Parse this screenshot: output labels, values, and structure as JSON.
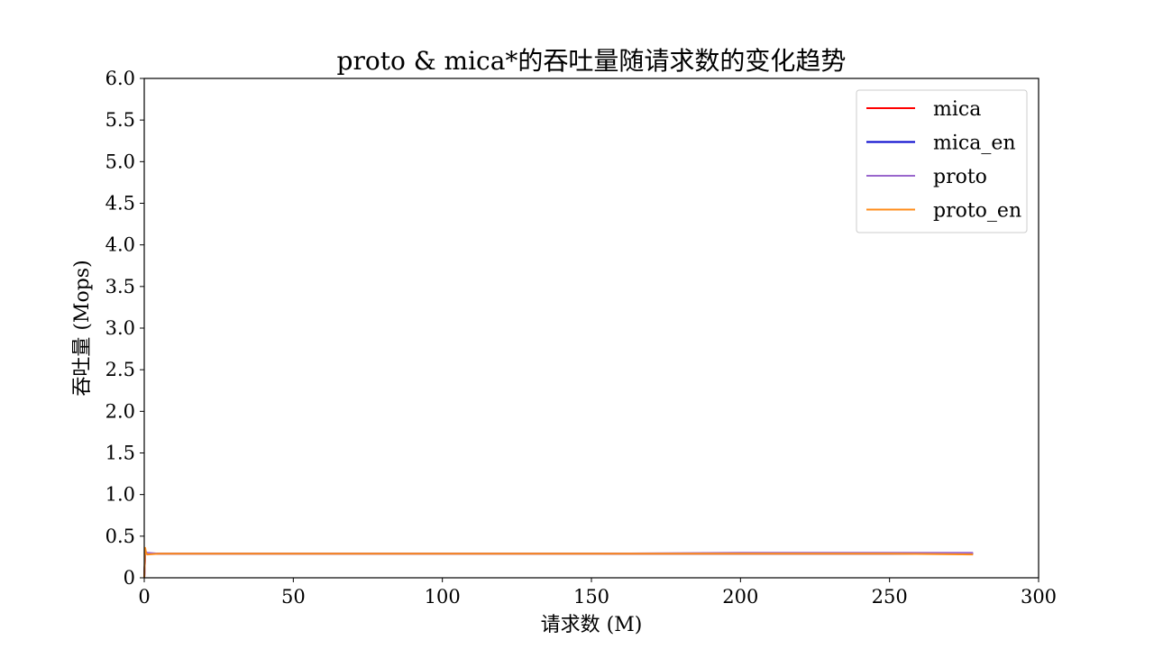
{
  "chart_data": {
    "type": "line",
    "title": "proto & mica*的吞吐量随请求数的变化趋势",
    "xlabel": "请求数 (M)",
    "ylabel": "吞吐量 (Mops)",
    "xlim": [
      0,
      300
    ],
    "ylim": [
      0,
      6.0
    ],
    "xticks": [
      "0",
      "50",
      "100",
      "150",
      "200",
      "250",
      "300"
    ],
    "yticks": [
      "0",
      "0.5",
      "1.0",
      "1.5",
      "2.0",
      "2.5",
      "3.0",
      "3.5",
      "4.0",
      "4.5",
      "5.0",
      "5.5",
      "6.0"
    ],
    "grid": false,
    "legend_position": "top-right",
    "series": [
      {
        "name": "mica",
        "color": "#ff0000",
        "x": [
          0,
          0.3,
          0.6,
          1,
          5,
          20,
          50,
          100,
          150,
          200,
          250,
          278
        ],
        "y": [
          0.0,
          0.29,
          0.3,
          0.29,
          0.29,
          0.29,
          0.29,
          0.29,
          0.29,
          0.29,
          0.29,
          0.29
        ]
      },
      {
        "name": "mica_en",
        "color": "#0000cc",
        "x": [
          0,
          0.3,
          0.6,
          1,
          5,
          20,
          50,
          100,
          150,
          200,
          250,
          278
        ],
        "y": [
          0.0,
          0.29,
          0.3,
          0.29,
          0.29,
          0.29,
          0.29,
          0.29,
          0.29,
          0.29,
          0.29,
          0.29
        ]
      },
      {
        "name": "proto",
        "color": "#9966cc",
        "x": [
          0,
          0.3,
          0.6,
          1,
          5,
          20,
          50,
          100,
          150,
          200,
          250,
          278
        ],
        "y": [
          0.0,
          0.3,
          0.31,
          0.3,
          0.29,
          0.29,
          0.29,
          0.29,
          0.29,
          0.3,
          0.3,
          0.3
        ]
      },
      {
        "name": "proto_en",
        "color": "#ff8c1a",
        "x": [
          0,
          0.3,
          0.6,
          1,
          5,
          20,
          50,
          100,
          150,
          200,
          250,
          278
        ],
        "y": [
          0.0,
          0.36,
          0.3,
          0.28,
          0.29,
          0.29,
          0.29,
          0.29,
          0.29,
          0.29,
          0.29,
          0.28
        ]
      }
    ]
  }
}
